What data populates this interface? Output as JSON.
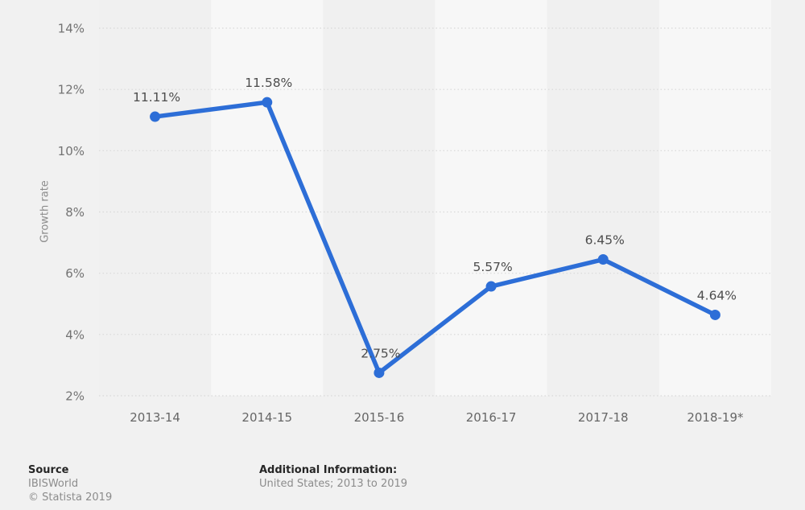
{
  "page": {
    "background": "#f1f1f1"
  },
  "chart_data": {
    "type": "line",
    "title": "",
    "xlabel": "",
    "ylabel": "Growth rate",
    "categories": [
      "2013-14",
      "2014-15",
      "2015-16",
      "2016-17",
      "2017-18",
      "2018-19*"
    ],
    "values": [
      11.11,
      11.58,
      2.75,
      5.57,
      6.45,
      4.64
    ],
    "value_labels": [
      "11.11%",
      "11.58%",
      "2.75%",
      "5.57%",
      "6.45%",
      "4.64%"
    ],
    "ylim": [
      2,
      14
    ],
    "ytick_step": 2,
    "ytick_labels": [
      "2%",
      "4%",
      "6%",
      "8%",
      "10%",
      "12%",
      "14%"
    ],
    "grid": "horizontal-dotted",
    "legend_position": "none",
    "line_color": "#2d6ed7",
    "marker": "circle",
    "plot_band_light": "#f7f7f7",
    "plot_band_dark": "#f0f0f0",
    "gridline_color": "#d8d8d8",
    "ytick_color": "#737373",
    "xtick_color": "#666666",
    "value_label_color": "#4d4d4d"
  },
  "footer": {
    "source_heading": "Source",
    "source_name": "IBISWorld",
    "copyright": "© Statista 2019",
    "additional_heading": "Additional Information:",
    "additional_text": "United States; 2013 to 2019"
  }
}
